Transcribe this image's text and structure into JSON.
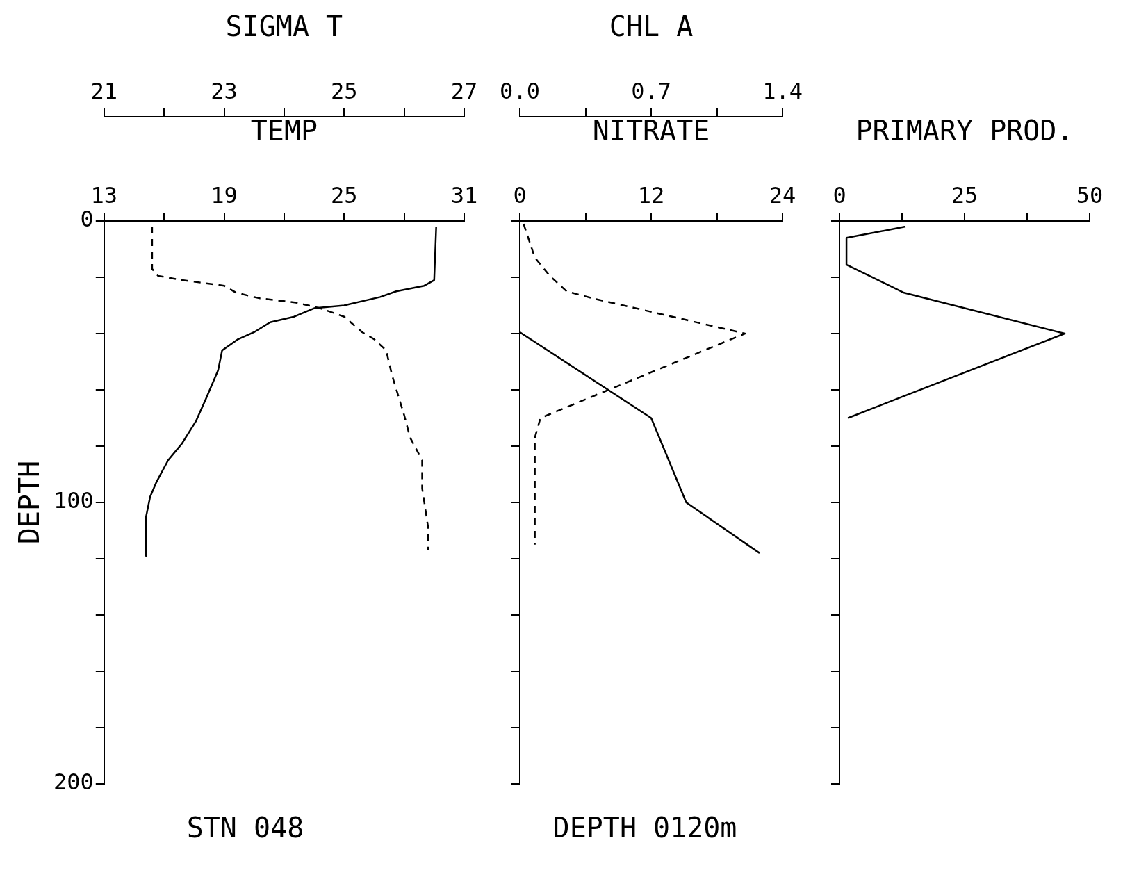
{
  "chart_data": [
    {
      "type": "line",
      "xlabel": "TEMP",
      "x2label": "SIGMA T",
      "ylabel": "DEPTH",
      "marker": "none",
      "grid": false,
      "xlim": [
        13,
        31
      ],
      "xticks": [
        13,
        {
          "value": 16,
          "label": null
        },
        19,
        {
          "value": 22,
          "label": null
        },
        25,
        {
          "value": 28,
          "label": null
        },
        31
      ],
      "x2lim": [
        21,
        27
      ],
      "x2ticks": [
        21,
        {
          "value": 22,
          "label": null
        },
        23,
        {
          "value": 24,
          "label": null
        },
        25,
        {
          "value": 26,
          "label": null
        },
        27
      ],
      "ylim": [
        200,
        0
      ],
      "yticks": [
        0,
        {
          "value": 20,
          "label": null
        },
        {
          "value": 40,
          "label": null
        },
        {
          "value": 60,
          "label": null
        },
        {
          "value": 80,
          "label": null
        },
        100,
        {
          "value": 120,
          "label": null
        },
        {
          "value": 140,
          "label": null
        },
        {
          "value": 160,
          "label": null
        },
        {
          "value": 180,
          "label": null
        },
        200
      ],
      "series": [
        {
          "color": "#000000",
          "line_style": "solid",
          "x": [
            29.6,
            29.5,
            29.0,
            27.6,
            26.8,
            25.0,
            23.5,
            22.5,
            21.3,
            20.5,
            19.7,
            18.9,
            18.7,
            18.1,
            17.6,
            16.9,
            16.2,
            15.6,
            15.3,
            15.1,
            15.1
          ],
          "values": [
            2,
            21,
            23,
            25,
            27,
            30,
            31,
            34,
            36,
            39.5,
            42,
            46,
            53,
            63,
            71,
            79,
            85,
            93,
            98,
            105,
            119
          ]
        },
        {
          "color": "#000000",
          "line_style": "dashed",
          "axis": "x2",
          "x": [
            21.8,
            21.8,
            21.9,
            22.3,
            23.0,
            23.2,
            23.6,
            24.2,
            24.6,
            25.0,
            25.3,
            25.5,
            25.7,
            25.8,
            26.0,
            26.1,
            26.3,
            26.3,
            26.4,
            26.4
          ],
          "values": [
            2,
            17,
            19.5,
            21,
            23,
            25.5,
            27.5,
            29,
            31,
            34,
            39.5,
            42,
            46,
            55,
            69,
            77,
            85,
            95,
            109,
            117
          ]
        }
      ],
      "annotations": [
        "STN 048"
      ]
    },
    {
      "type": "line",
      "xlabel": "NITRATE",
      "x2label": "CHL A",
      "marker": "none",
      "grid": false,
      "tick_labels": "x",
      "xlim": [
        0,
        24
      ],
      "xticks": [
        0,
        {
          "value": 6,
          "label": null
        },
        12,
        {
          "value": 18,
          "label": null
        },
        24
      ],
      "x2lim": [
        0,
        1.4
      ],
      "x2ticks": [
        {
          "value": 0,
          "label": "0.0"
        },
        {
          "value": 0.35,
          "label": null
        },
        0.7,
        {
          "value": 1.05,
          "label": null
        },
        1.4
      ],
      "ylim": [
        200,
        0
      ],
      "yticks": [
        0,
        {
          "value": 20,
          "label": null
        },
        {
          "value": 40,
          "label": null
        },
        {
          "value": 60,
          "label": null
        },
        {
          "value": 80,
          "label": null
        },
        100,
        {
          "value": 120,
          "label": null
        },
        {
          "value": 140,
          "label": null
        },
        {
          "value": 160,
          "label": null
        },
        {
          "value": 180,
          "label": null
        },
        200
      ],
      "series": [
        {
          "color": "#000000",
          "line_style": "solid",
          "x": [
            0,
            12,
            15.2,
            21.9
          ],
          "values": [
            39.5,
            70,
            100,
            118
          ]
        },
        {
          "color": "#000000",
          "line_style": "dashed",
          "axis": "x2",
          "x": [
            0.02,
            0.08,
            0.16,
            0.25,
            0.39,
            1.2,
            0.11,
            0.08,
            0.08
          ],
          "values": [
            1,
            13,
            19.5,
            25,
            27.5,
            40,
            70,
            77,
            115
          ]
        }
      ],
      "annotations": [
        "DEPTH 0120m"
      ]
    },
    {
      "type": "line",
      "xlabel": "PRIMARY PROD.",
      "marker": "none",
      "grid": false,
      "tick_labels": "x",
      "xlim": [
        0,
        50
      ],
      "xticks": [
        0,
        {
          "value": 12.5,
          "label": null
        },
        25,
        {
          "value": 37.5,
          "label": null
        },
        50
      ],
      "ylim": [
        200,
        0
      ],
      "yticks": [
        0,
        {
          "value": 20,
          "label": null
        },
        {
          "value": 40,
          "label": null
        },
        {
          "value": 60,
          "label": null
        },
        {
          "value": 80,
          "label": null
        },
        100,
        {
          "value": 120,
          "label": null
        },
        {
          "value": 140,
          "label": null
        },
        {
          "value": 160,
          "label": null
        },
        {
          "value": 180,
          "label": null
        },
        200
      ],
      "series": [
        {
          "color": "#000000",
          "line_style": "solid",
          "x": [
            13.2,
            1.4,
            1.4,
            12.9,
            45,
            13.2,
            1.7
          ],
          "values": [
            2,
            6,
            15.5,
            25.5,
            40,
            62,
            70
          ]
        }
      ]
    }
  ]
}
